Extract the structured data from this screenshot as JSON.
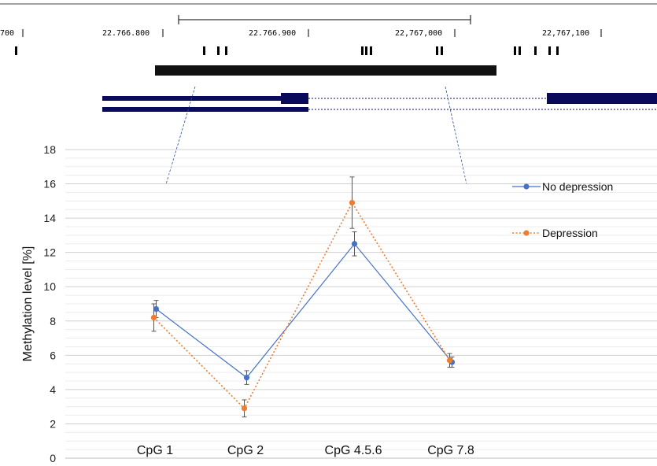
{
  "browser": {
    "coords": [
      "700",
      "22.766.800",
      "22.766.900",
      "22,767,000",
      "22,767,100"
    ],
    "colors": {
      "gene": "#0a0a5c",
      "feature": "#111111"
    }
  },
  "chart_data": {
    "type": "line",
    "categories": [
      "CpG 1",
      "CpG 2",
      "CpG 4.5.6",
      "CpG 7.8"
    ],
    "ylabel": "Methylation level [%]",
    "xlabel": "",
    "ylim": [
      0,
      18
    ],
    "yticks": [
      0,
      2,
      4,
      6,
      8,
      10,
      12,
      14,
      16,
      18
    ],
    "grid": true,
    "legend": "right",
    "series": [
      {
        "name": "No depression",
        "values": [
          8.7,
          4.7,
          12.5,
          5.6
        ],
        "errors": [
          0.5,
          0.4,
          0.7,
          0.3
        ],
        "color": "#4472c4",
        "style": "solid"
      },
      {
        "name": "Depression",
        "values": [
          8.2,
          2.9,
          14.9,
          5.7
        ],
        "errors": [
          0.8,
          0.5,
          1.5,
          0.4
        ],
        "color": "#ed7d31",
        "style": "dotted"
      }
    ]
  }
}
